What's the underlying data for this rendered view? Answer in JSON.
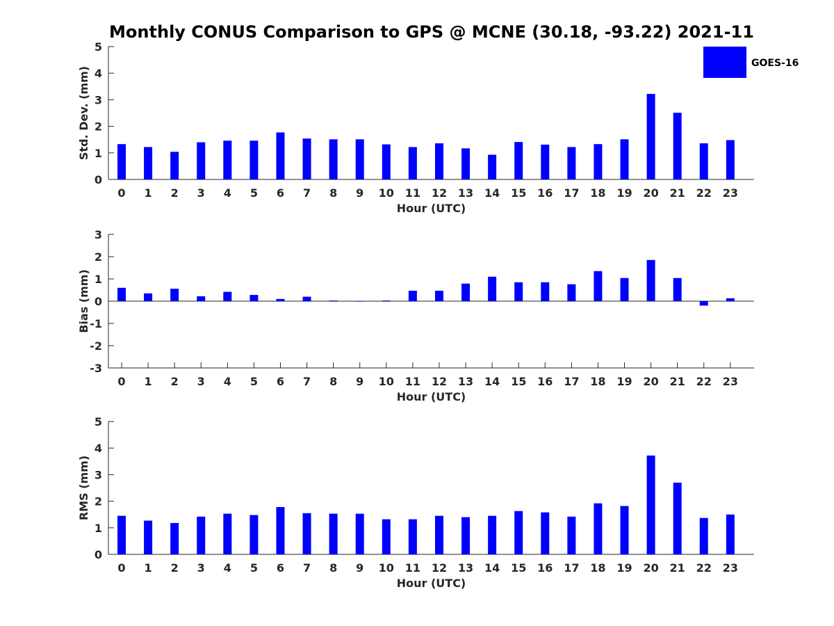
{
  "title": "Monthly CONUS Comparison to GPS @ MCNE (30.18, -93.22) 2021-11",
  "legend": {
    "label": "GOES-16",
    "color": "#0000ff"
  },
  "chart_data": [
    {
      "type": "bar",
      "name": "std",
      "xlabel": "Hour (UTC)",
      "ylabel": "Std. Dev. (mm)",
      "ylim": [
        0,
        5
      ],
      "yticks": [
        0,
        1,
        2,
        3,
        4,
        5
      ],
      "categories": [
        "0",
        "1",
        "2",
        "3",
        "4",
        "5",
        "6",
        "7",
        "8",
        "9",
        "10",
        "11",
        "12",
        "13",
        "14",
        "15",
        "16",
        "17",
        "18",
        "19",
        "20",
        "21",
        "22",
        "23"
      ],
      "series": [
        {
          "name": "GOES-16",
          "values": [
            1.33,
            1.22,
            1.04,
            1.4,
            1.46,
            1.46,
            1.77,
            1.54,
            1.51,
            1.51,
            1.32,
            1.22,
            1.36,
            1.17,
            0.93,
            1.41,
            1.31,
            1.22,
            1.33,
            1.51,
            3.22,
            2.51,
            1.36,
            1.48
          ]
        }
      ]
    },
    {
      "type": "bar",
      "name": "bias",
      "xlabel": "Hour (UTC)",
      "ylabel": "Bias (mm)",
      "ylim": [
        -3,
        3
      ],
      "yticks": [
        -3,
        -2,
        -1,
        0,
        1,
        2,
        3
      ],
      "zero_line": true,
      "categories": [
        "0",
        "1",
        "2",
        "3",
        "4",
        "5",
        "6",
        "7",
        "8",
        "9",
        "10",
        "11",
        "12",
        "13",
        "14",
        "15",
        "16",
        "17",
        "18",
        "19",
        "20",
        "21",
        "22",
        "23"
      ],
      "series": [
        {
          "name": "GOES-16",
          "values": [
            0.6,
            0.35,
            0.56,
            0.22,
            0.42,
            0.28,
            0.1,
            0.2,
            0.03,
            -0.02,
            0.03,
            0.47,
            0.47,
            0.79,
            1.1,
            0.85,
            0.85,
            0.76,
            1.35,
            1.04,
            1.85,
            1.04,
            -0.2,
            0.13
          ]
        }
      ]
    },
    {
      "type": "bar",
      "name": "rms",
      "xlabel": "Hour (UTC)",
      "ylabel": "RMS (mm)",
      "ylim": [
        0,
        5
      ],
      "yticks": [
        0,
        1,
        2,
        3,
        4,
        5
      ],
      "categories": [
        "0",
        "1",
        "2",
        "3",
        "4",
        "5",
        "6",
        "7",
        "8",
        "9",
        "10",
        "11",
        "12",
        "13",
        "14",
        "15",
        "16",
        "17",
        "18",
        "19",
        "20",
        "21",
        "22",
        "23"
      ],
      "series": [
        {
          "name": "GOES-16",
          "values": [
            1.45,
            1.27,
            1.18,
            1.42,
            1.53,
            1.48,
            1.78,
            1.55,
            1.53,
            1.53,
            1.32,
            1.32,
            1.45,
            1.4,
            1.45,
            1.63,
            1.58,
            1.42,
            1.92,
            1.82,
            3.72,
            2.7,
            1.37,
            1.5
          ]
        }
      ]
    }
  ]
}
